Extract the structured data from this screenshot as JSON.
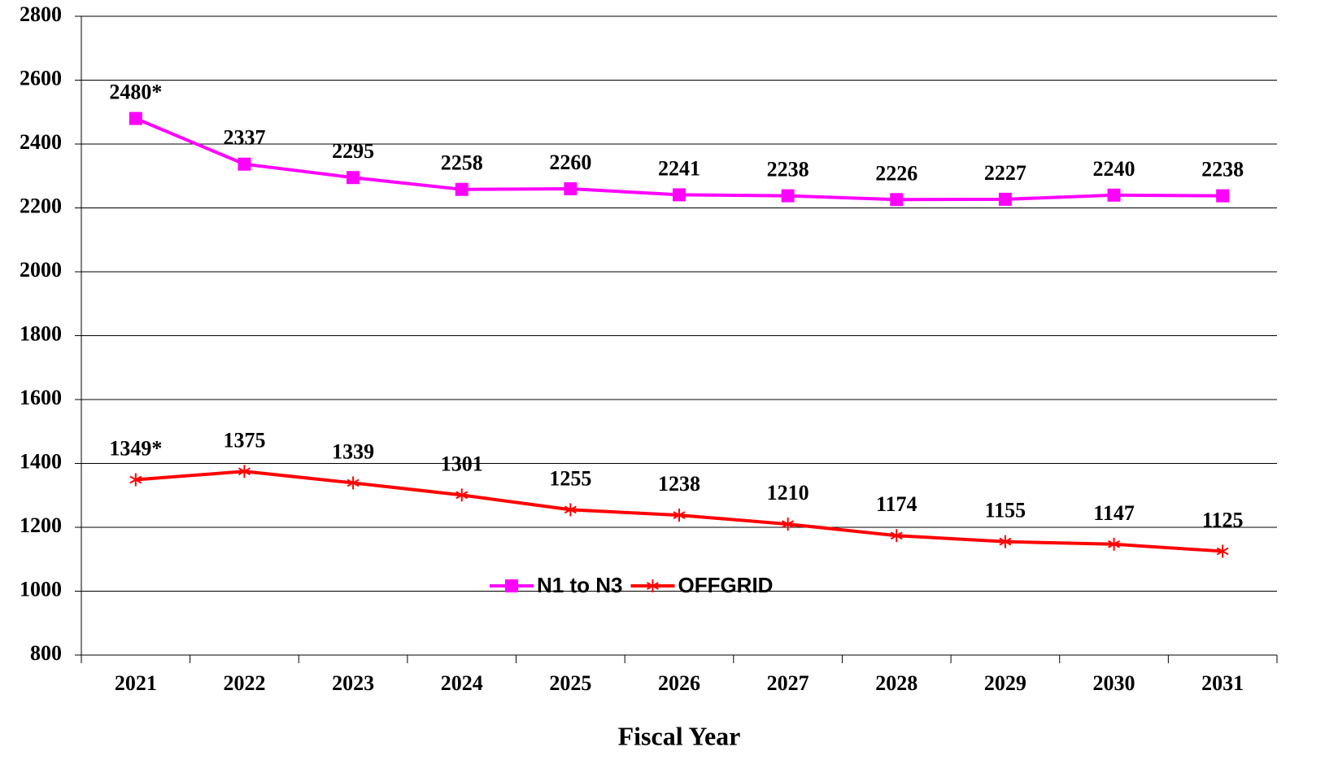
{
  "chart_data": {
    "type": "line",
    "x_label": "Fiscal Year",
    "categories": [
      "2021",
      "2022",
      "2023",
      "2024",
      "2025",
      "2026",
      "2027",
      "2028",
      "2029",
      "2030",
      "2031"
    ],
    "series": [
      {
        "name": "N1 to N3",
        "color": "#ff00ff",
        "marker": "square",
        "values": [
          2480,
          2337,
          2295,
          2258,
          2260,
          2241,
          2238,
          2226,
          2227,
          2240,
          2238
        ],
        "value_labels": [
          "2480*",
          "2337",
          "2295",
          "2258",
          "2260",
          "2241",
          "2238",
          "2226",
          "2227",
          "2240",
          "2238"
        ]
      },
      {
        "name": "OFFGRID",
        "color": "#ff0000",
        "marker": "asterisk",
        "values": [
          1349,
          1375,
          1339,
          1301,
          1255,
          1238,
          1210,
          1174,
          1155,
          1147,
          1125
        ],
        "value_labels": [
          "1349*",
          "1375",
          "1339",
          "1301",
          "1255",
          "1238",
          "1210",
          "1174",
          "1155",
          "1147",
          "1125"
        ]
      }
    ],
    "ylim": [
      800,
      2800
    ],
    "yticks": [
      800,
      1000,
      1200,
      1400,
      1600,
      1800,
      2000,
      2200,
      2400,
      2600,
      2800
    ],
    "grid": true,
    "legend": "bottom"
  }
}
